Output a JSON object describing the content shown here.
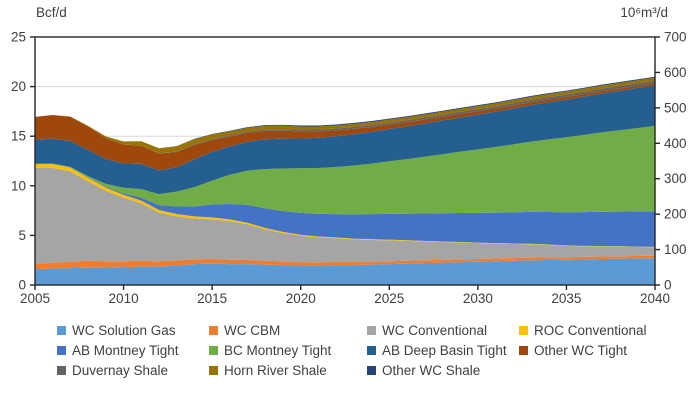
{
  "chart_data": {
    "type": "area",
    "stacked": true,
    "grid": true,
    "legend_position": "bottom",
    "x": [
      2005,
      2006,
      2007,
      2008,
      2009,
      2010,
      2011,
      2012,
      2013,
      2014,
      2015,
      2016,
      2017,
      2018,
      2019,
      2020,
      2021,
      2022,
      2023,
      2024,
      2025,
      2026,
      2027,
      2028,
      2029,
      2030,
      2031,
      2032,
      2033,
      2034,
      2035,
      2036,
      2037,
      2038,
      2039,
      2040
    ],
    "x_axis": {
      "range": [
        2005,
        2040
      ],
      "ticks": [
        2005,
        2010,
        2015,
        2020,
        2025,
        2030,
        2035,
        2040
      ]
    },
    "left_axis": {
      "label": "Bcf/d",
      "range": [
        0,
        25
      ],
      "ticks": [
        0,
        5,
        10,
        15,
        20,
        25
      ]
    },
    "right_axis": {
      "label": "10⁶m³/d",
      "range": [
        0,
        700
      ],
      "ticks": [
        0,
        100,
        200,
        300,
        400,
        500,
        600,
        700
      ]
    },
    "series": [
      {
        "name": "WC Solution Gas",
        "color": "#5B9BD5",
        "values": [
          1.6,
          1.65,
          1.7,
          1.75,
          1.75,
          1.8,
          1.85,
          1.85,
          1.95,
          2.1,
          2.15,
          2.1,
          2.1,
          2.05,
          2.0,
          1.95,
          1.95,
          2.0,
          2.0,
          2.05,
          2.1,
          2.15,
          2.2,
          2.25,
          2.3,
          2.35,
          2.4,
          2.45,
          2.5,
          2.52,
          2.55,
          2.58,
          2.62,
          2.65,
          2.68,
          2.7
        ]
      },
      {
        "name": "WC CBM",
        "color": "#ED7D31",
        "values": [
          0.5,
          0.6,
          0.65,
          0.7,
          0.65,
          0.6,
          0.58,
          0.55,
          0.52,
          0.5,
          0.47,
          0.44,
          0.42,
          0.4,
          0.38,
          0.36,
          0.34,
          0.33,
          0.32,
          0.31,
          0.3,
          0.29,
          0.29,
          0.28,
          0.28,
          0.27,
          0.27,
          0.26,
          0.26,
          0.26,
          0.25,
          0.25,
          0.25,
          0.25,
          0.25,
          0.25
        ]
      },
      {
        "name": "WC Conventional",
        "color": "#A5A5A5",
        "values": [
          9.7,
          9.55,
          9.1,
          8.0,
          7.1,
          6.4,
          5.8,
          4.9,
          4.45,
          4.1,
          4.0,
          3.9,
          3.6,
          3.15,
          2.85,
          2.65,
          2.5,
          2.38,
          2.28,
          2.18,
          2.1,
          2.0,
          1.9,
          1.8,
          1.7,
          1.6,
          1.5,
          1.42,
          1.35,
          1.25,
          1.15,
          1.08,
          1.02,
          0.96,
          0.9,
          0.85
        ]
      },
      {
        "name": "ROC Conventional",
        "color": "#FFC000",
        "values": [
          0.4,
          0.38,
          0.36,
          0.34,
          0.32,
          0.3,
          0.28,
          0.26,
          0.24,
          0.22,
          0.2,
          0.18,
          0.16,
          0.14,
          0.12,
          0.11,
          0.1,
          0.09,
          0.08,
          0.08,
          0.07,
          0.07,
          0.06,
          0.06,
          0.06,
          0.05,
          0.05,
          0.05,
          0.05,
          0.05,
          0.04,
          0.04,
          0.04,
          0.04,
          0.04,
          0.04
        ]
      },
      {
        "name": "AB Montney Tight",
        "color": "#4472C4",
        "values": [
          0.0,
          0.0,
          0.02,
          0.05,
          0.08,
          0.15,
          0.3,
          0.5,
          0.75,
          1.0,
          1.3,
          1.55,
          1.8,
          2.0,
          2.1,
          2.2,
          2.28,
          2.35,
          2.45,
          2.52,
          2.6,
          2.68,
          2.76,
          2.84,
          2.92,
          3.0,
          3.07,
          3.14,
          3.21,
          3.28,
          3.35,
          3.4,
          3.45,
          3.5,
          3.55,
          3.6
        ]
      },
      {
        "name": "BC Montney Tight",
        "color": "#70AD47",
        "values": [
          0.05,
          0.06,
          0.08,
          0.12,
          0.3,
          0.55,
          0.85,
          1.1,
          1.5,
          1.95,
          2.4,
          2.95,
          3.45,
          3.95,
          4.3,
          4.5,
          4.62,
          4.75,
          4.92,
          5.1,
          5.3,
          5.5,
          5.72,
          5.95,
          6.18,
          6.4,
          6.62,
          6.85,
          7.08,
          7.32,
          7.55,
          7.78,
          8.0,
          8.2,
          8.4,
          8.6
        ]
      },
      {
        "name": "AB Deep Basin Tight",
        "color": "#255E91",
        "values": [
          2.4,
          2.5,
          2.6,
          2.65,
          2.5,
          2.45,
          2.55,
          2.4,
          2.45,
          2.8,
          2.9,
          2.85,
          2.9,
          3.0,
          3.0,
          3.0,
          3.05,
          3.1,
          3.15,
          3.2,
          3.25,
          3.3,
          3.35,
          3.4,
          3.45,
          3.5,
          3.56,
          3.62,
          3.68,
          3.74,
          3.8,
          3.86,
          3.92,
          3.98,
          4.04,
          4.1
        ]
      },
      {
        "name": "Other WC Tight",
        "color": "#9E480E",
        "values": [
          2.3,
          2.4,
          2.45,
          2.35,
          2.1,
          1.9,
          1.85,
          1.7,
          1.55,
          1.45,
          1.2,
          1.0,
          0.9,
          0.85,
          0.8,
          0.72,
          0.65,
          0.6,
          0.55,
          0.5,
          0.45,
          0.42,
          0.4,
          0.38,
          0.36,
          0.34,
          0.32,
          0.31,
          0.3,
          0.28,
          0.27,
          0.26,
          0.25,
          0.23,
          0.22,
          0.2
        ]
      },
      {
        "name": "Duvernay Shale",
        "color": "#636363",
        "values": [
          0.0,
          0.0,
          0.0,
          0.0,
          0.0,
          0.0,
          0.01,
          0.02,
          0.05,
          0.08,
          0.1,
          0.12,
          0.13,
          0.15,
          0.16,
          0.17,
          0.18,
          0.18,
          0.19,
          0.19,
          0.2,
          0.2,
          0.21,
          0.21,
          0.21,
          0.22,
          0.22,
          0.23,
          0.23,
          0.24,
          0.24,
          0.24,
          0.25,
          0.25,
          0.25,
          0.25
        ]
      },
      {
        "name": "Horn River Shale",
        "color": "#997300",
        "values": [
          0.0,
          0.0,
          0.02,
          0.08,
          0.18,
          0.32,
          0.42,
          0.5,
          0.52,
          0.5,
          0.45,
          0.4,
          0.38,
          0.36,
          0.34,
          0.32,
          0.31,
          0.3,
          0.3,
          0.3,
          0.3,
          0.3,
          0.3,
          0.3,
          0.3,
          0.3,
          0.3,
          0.3,
          0.3,
          0.3,
          0.3,
          0.3,
          0.3,
          0.3,
          0.3,
          0.3
        ]
      },
      {
        "name": "Other WC Shale",
        "color": "#264478",
        "values": [
          0.0,
          0.0,
          0.0,
          0.0,
          0.0,
          0.0,
          0.0,
          0.0,
          0.02,
          0.04,
          0.05,
          0.06,
          0.07,
          0.08,
          0.09,
          0.1,
          0.1,
          0.1,
          0.1,
          0.1,
          0.1,
          0.1,
          0.1,
          0.1,
          0.1,
          0.1,
          0.1,
          0.1,
          0.1,
          0.1,
          0.1,
          0.1,
          0.1,
          0.1,
          0.1,
          0.1
        ]
      }
    ],
    "style": {
      "grid_color": "#D9D9D9",
      "axis_color": "#262626",
      "text_color": "#3f3f3f",
      "background": "#ffffff"
    }
  }
}
